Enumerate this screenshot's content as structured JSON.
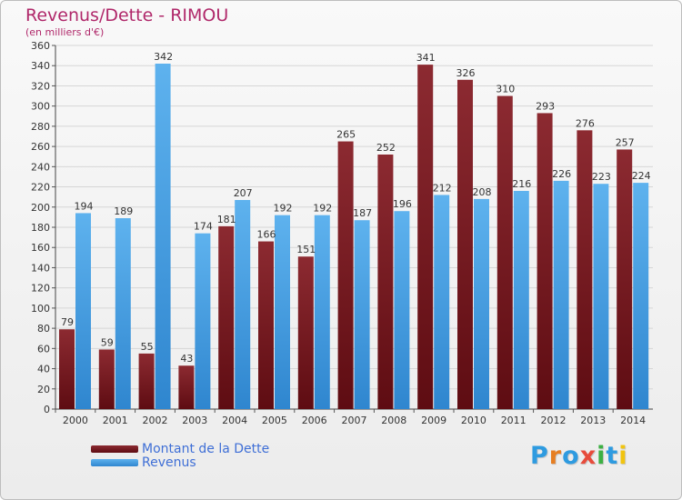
{
  "header": {
    "title": "Revenus/Dette - RIMOU",
    "subtitle": "(en milliers d'€)"
  },
  "chart_data": {
    "type": "bar",
    "categories": [
      "2000",
      "2001",
      "2002",
      "2003",
      "2004",
      "2005",
      "2006",
      "2007",
      "2008",
      "2009",
      "2010",
      "2011",
      "2012",
      "2013",
      "2014"
    ],
    "series": [
      {
        "name": "Montant de la Dette",
        "values": [
          79,
          59,
          55,
          43,
          181,
          166,
          151,
          265,
          252,
          341,
          326,
          310,
          293,
          276,
          257
        ],
        "color": "#7a1f26"
      },
      {
        "name": "Revenus",
        "values": [
          194,
          189,
          342,
          174,
          207,
          192,
          192,
          187,
          196,
          212,
          208,
          216,
          226,
          223,
          224
        ],
        "color": "#4fa3e2"
      }
    ],
    "data_labels": {
      "Montant de la Dette": [
        "79",
        "59",
        "55",
        "43",
        "181",
        "166",
        "151",
        "265",
        "252",
        "341",
        "326",
        "310",
        "293",
        "276",
        "257"
      ],
      "Revenus": [
        "194",
        "189",
        "342",
        "174",
        "207",
        "192",
        "192",
        "187",
        "196",
        "212",
        "208",
        "216",
        "226",
        "223",
        "224"
      ]
    },
    "y_ticks": [
      "0",
      "20",
      "40",
      "60",
      "80",
      "100",
      "120",
      "140",
      "160",
      "180",
      "200",
      "220",
      "240",
      "260",
      "280",
      "300",
      "320",
      "340",
      "360"
    ],
    "ylim": [
      0,
      360
    ],
    "grid": true,
    "legend_position": "bottom-left"
  },
  "logo": {
    "letters": [
      "P",
      "r",
      "o",
      "x",
      "i",
      "t",
      "i"
    ],
    "colors": [
      "#2e9be0",
      "#e67e22",
      "#2e9be0",
      "#e74c3c",
      "#3cb043",
      "#2e9be0",
      "#f1c40f"
    ]
  }
}
